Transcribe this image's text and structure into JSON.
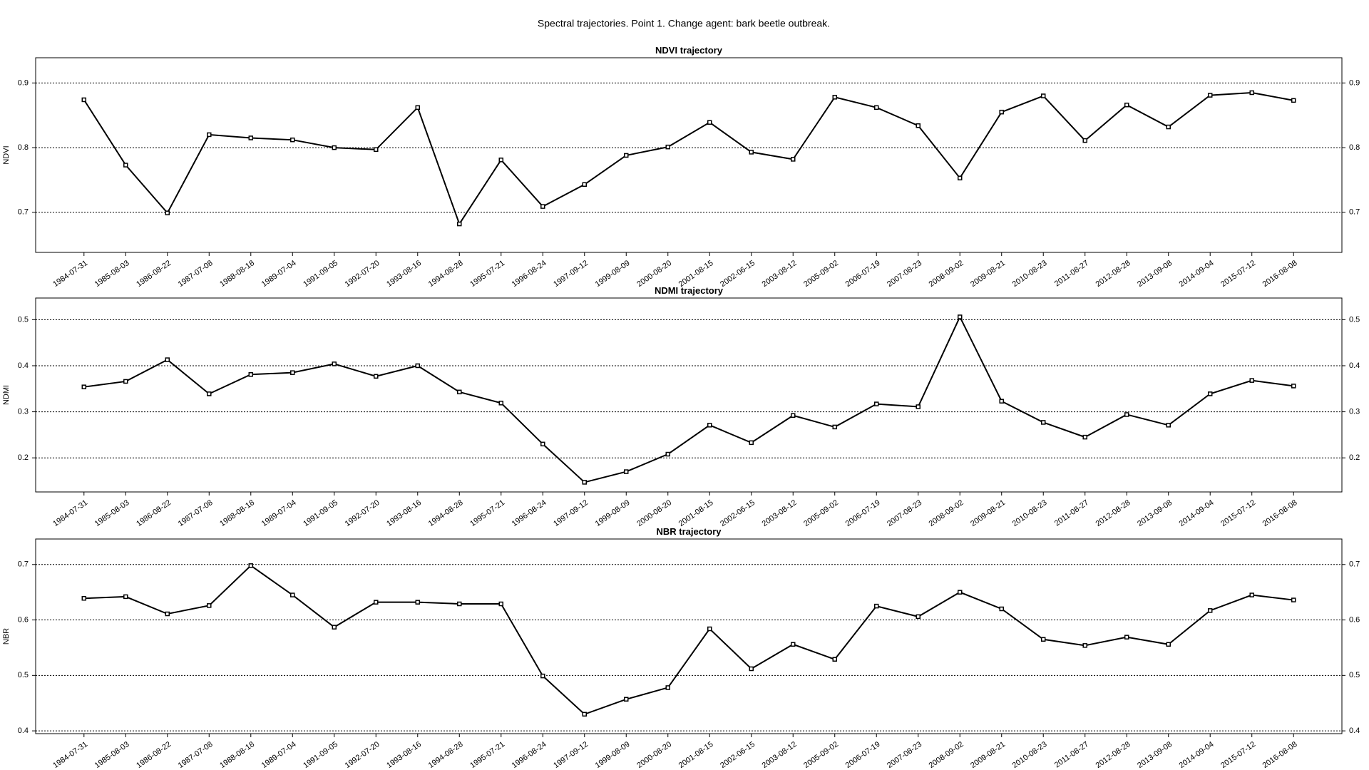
{
  "title": "Spectral trajectories. Point 1. Change agent: bark beetle outbreak.",
  "chart_data": [
    {
      "type": "line",
      "title": "NDVI trajectory",
      "ylabel": "NDVI",
      "grid": true,
      "categories": [
        "1984-07-31",
        "1985-08-03",
        "1986-08-22",
        "1987-07-08",
        "1988-08-18",
        "1989-07-04",
        "1991-09-05",
        "1992-07-20",
        "1993-08-16",
        "1994-08-28",
        "1995-07-21",
        "1996-08-24",
        "1997-09-12",
        "1999-08-09",
        "2000-08-20",
        "2001-08-15",
        "2002-06-15",
        "2003-08-12",
        "2005-09-02",
        "2006-07-19",
        "2007-08-23",
        "2008-09-02",
        "2009-08-21",
        "2010-08-23",
        "2011-08-27",
        "2012-08-28",
        "2013-09-08",
        "2014-09-04",
        "2015-07-12",
        "2016-08-08"
      ],
      "values": [
        0.874,
        0.773,
        0.699,
        0.82,
        0.815,
        0.812,
        0.8,
        0.797,
        0.862,
        0.682,
        0.781,
        0.709,
        0.743,
        0.788,
        0.801,
        0.839,
        0.793,
        0.782,
        0.878,
        0.862,
        0.834,
        0.753,
        0.855,
        0.88,
        0.811,
        0.866,
        0.832,
        0.881,
        0.885,
        0.873
      ],
      "color": "#000000",
      "ylim": [
        0.638,
        0.939
      ],
      "yticks": [
        0.7,
        0.8,
        0.9
      ]
    },
    {
      "type": "line",
      "title": "NDMI trajectory",
      "ylabel": "NDMI",
      "grid": true,
      "categories": [
        "1984-07-31",
        "1985-08-03",
        "1986-08-22",
        "1987-07-08",
        "1988-08-18",
        "1989-07-04",
        "1991-09-05",
        "1992-07-20",
        "1993-08-16",
        "1994-08-28",
        "1995-07-21",
        "1996-08-24",
        "1997-09-12",
        "1999-08-09",
        "2000-08-20",
        "2001-08-15",
        "2002-06-15",
        "2003-08-12",
        "2005-09-02",
        "2006-07-19",
        "2007-08-23",
        "2008-09-02",
        "2009-08-21",
        "2010-08-23",
        "2011-08-27",
        "2012-08-28",
        "2013-09-08",
        "2014-09-04",
        "2015-07-12",
        "2016-08-08"
      ],
      "values": [
        0.354,
        0.366,
        0.413,
        0.339,
        0.381,
        0.385,
        0.404,
        0.377,
        0.4,
        0.343,
        0.319,
        0.23,
        0.147,
        0.17,
        0.208,
        0.271,
        0.233,
        0.292,
        0.267,
        0.317,
        0.311,
        0.506,
        0.323,
        0.277,
        0.245,
        0.294,
        0.271,
        0.339,
        0.368,
        0.356
      ],
      "color": "#000000",
      "ylim": [
        0.126,
        0.547
      ],
      "yticks": [
        0.2,
        0.3,
        0.4,
        0.5
      ]
    },
    {
      "type": "line",
      "title": "NBR trajectory",
      "ylabel": "NBR",
      "grid": true,
      "categories": [
        "1984-07-31",
        "1985-08-03",
        "1986-08-22",
        "1987-07-08",
        "1988-08-18",
        "1989-07-04",
        "1991-09-05",
        "1992-07-20",
        "1993-08-16",
        "1994-08-28",
        "1995-07-21",
        "1996-08-24",
        "1997-09-12",
        "1999-08-09",
        "2000-08-20",
        "2001-08-15",
        "2002-06-15",
        "2003-08-12",
        "2005-09-02",
        "2006-07-19",
        "2007-08-23",
        "2008-09-02",
        "2009-08-21",
        "2010-08-23",
        "2011-08-27",
        "2012-08-28",
        "2013-09-08",
        "2014-09-04",
        "2015-07-12",
        "2016-08-08"
      ],
      "values": [
        0.639,
        0.642,
        0.611,
        0.626,
        0.698,
        0.645,
        0.587,
        0.632,
        0.632,
        0.629,
        0.629,
        0.499,
        0.43,
        0.457,
        0.478,
        0.584,
        0.512,
        0.556,
        0.529,
        0.625,
        0.606,
        0.65,
        0.62,
        0.565,
        0.554,
        0.569,
        0.556,
        0.617,
        0.645,
        0.636
      ],
      "color": "#000000",
      "ylim": [
        0.395,
        0.746
      ],
      "yticks": [
        0.4,
        0.5,
        0.6,
        0.7
      ]
    }
  ]
}
